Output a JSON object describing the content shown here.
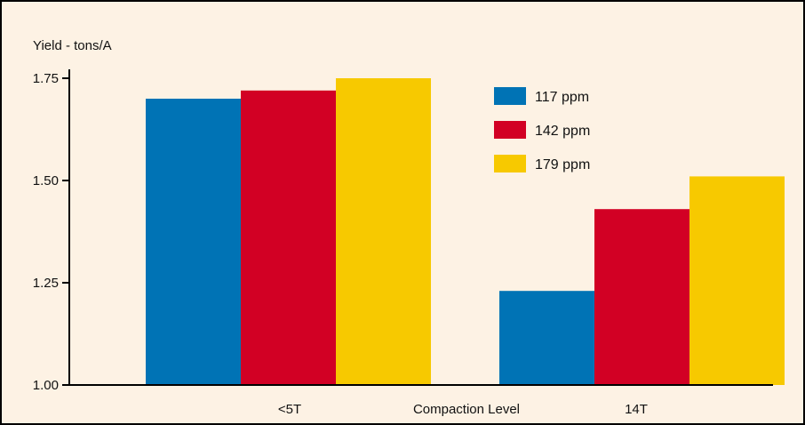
{
  "chart_data": {
    "type": "bar",
    "title": "",
    "ylabel": "Yield - tons/A",
    "xlabel": "Compaction Level",
    "categories": [
      "<5T",
      "14T"
    ],
    "series": [
      {
        "name": "117 ppm",
        "values": [
          1.7,
          1.23
        ],
        "color": "#0073b5"
      },
      {
        "name": "142 ppm",
        "values": [
          1.72,
          1.43
        ],
        "color": "#d20024"
      },
      {
        "name": "179 ppm",
        "values": [
          1.75,
          1.51
        ],
        "color": "#f7c900"
      }
    ],
    "ylim": [
      1.0,
      1.75
    ],
    "yticks": [
      "1.00",
      "1.25",
      "1.50",
      "1.75"
    ],
    "grid": false,
    "legend_position": "top-right",
    "background_color": "#fdf2e4",
    "frame_color": "#000000"
  }
}
